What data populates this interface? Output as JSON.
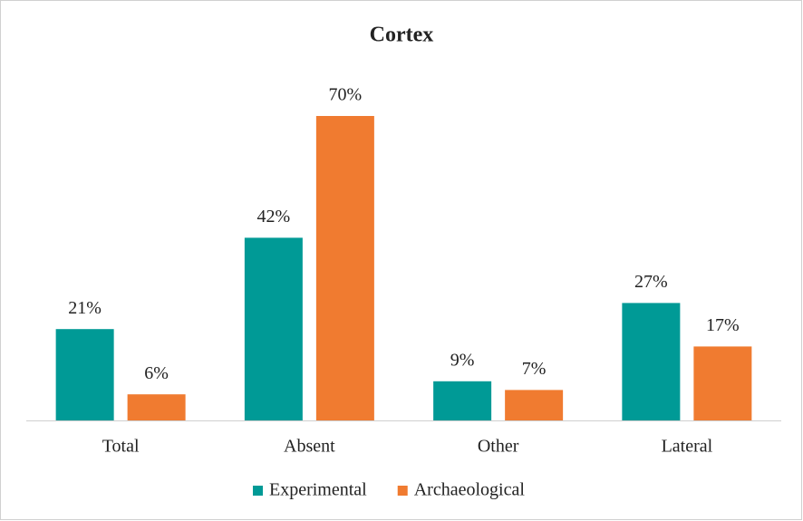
{
  "chart_data": {
    "type": "bar",
    "title": "Cortex",
    "categories": [
      "Total",
      "Absent",
      "Other",
      "Lateral"
    ],
    "series": [
      {
        "name": "Experimental",
        "color": "#009a96",
        "values": [
          21,
          42,
          9,
          27
        ],
        "value_labels": [
          "21%",
          "42%",
          "9%",
          "27%"
        ]
      },
      {
        "name": "Archaeological",
        "color": "#f07b30",
        "values": [
          6,
          70,
          7,
          17
        ],
        "value_labels": [
          "6%",
          "70%",
          "7%",
          "17%"
        ]
      }
    ],
    "ylim": [
      0,
      70
    ],
    "legend": "bottom"
  }
}
